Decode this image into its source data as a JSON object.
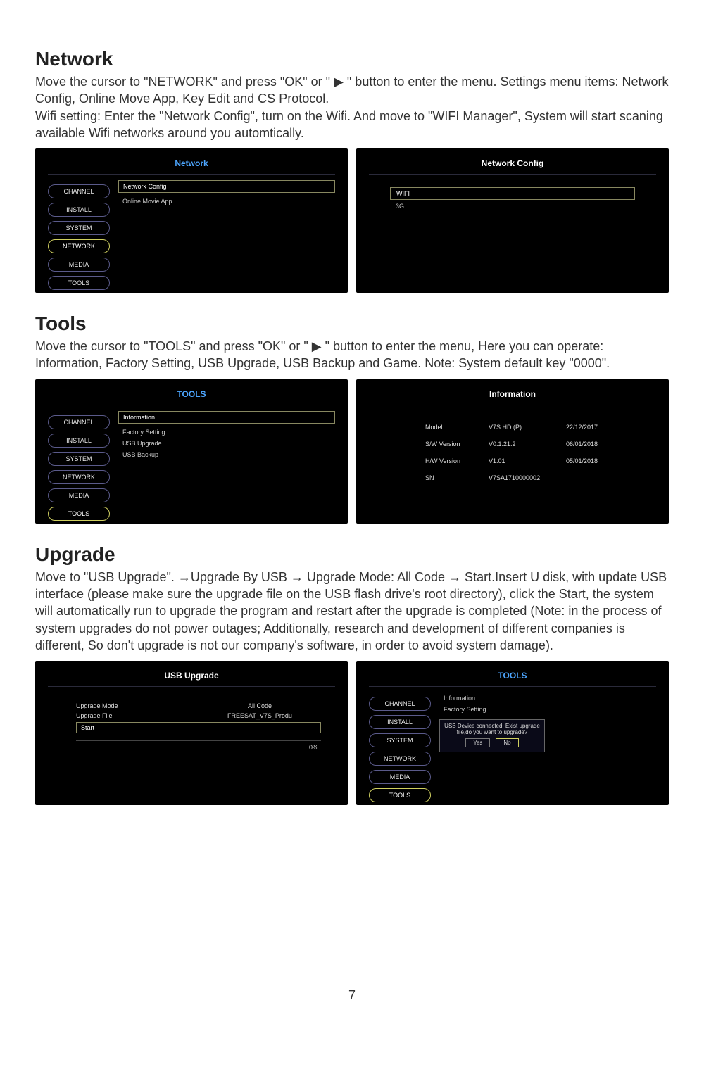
{
  "page_number": "7",
  "sections": {
    "network": {
      "heading": "Network",
      "body": "Move the cursor to \"NETWORK\" and press \"OK\" or \" ▶ \" button to enter the menu. Settings menu items: Network Config, Online Move App, Key Edit and CS Protocol.\nWifi setting: Enter the \"Network Config\", turn on the Wifi. And move to \"WIFI Manager\", System will start scaning available Wifi networks around you automtically."
    },
    "tools": {
      "heading": "Tools",
      "body": "Move the cursor to \"TOOLS\" and press \"OK\" or \" ▶ \" button to enter the menu, Here you can operate: Information, Factory Setting,  USB Upgrade, USB Backup and Game. Note: System default key \"0000\"."
    },
    "upgrade": {
      "heading": "Upgrade",
      "body": "Move to \"USB Upgrade\". →Upgrade By USB → Upgrade Mode: All Code → Start.Insert U disk, with update USB interface (please make sure the upgrade file on the USB flash drive's root directory), click the Start, the system will automatically run to upgrade the program and restart after the upgrade is completed (Note: in the process of system upgrades do not power outages; Additionally, research and development of different companies is different, So don't upgrade is not our company's software, in order to avoid system damage)."
    }
  },
  "sidebar_items": [
    "CHANNEL",
    "INSTALL",
    "SYSTEM",
    "NETWORK",
    "MEDIA",
    "TOOLS"
  ],
  "shot_network_menu": {
    "title": "Network",
    "selected_sidebar": "NETWORK",
    "options": [
      "Network Config",
      "Online Movie App"
    ]
  },
  "shot_network_config": {
    "title": "Network Config",
    "items": [
      "WIFI",
      "3G"
    ]
  },
  "shot_tools_menu": {
    "title": "TOOLS",
    "selected_sidebar": "TOOLS",
    "options": [
      "Information",
      "Factory Setting",
      "USB Upgrade",
      "USB Backup"
    ]
  },
  "shot_information": {
    "title": "Information",
    "rows": [
      {
        "label": "Model",
        "val": "V7S HD (P)",
        "date": "22/12/2017"
      },
      {
        "label": "S/W Version",
        "val": "V0.1.21.2",
        "date": "06/01/2018"
      },
      {
        "label": "H/W Version",
        "val": "V1.01",
        "date": "05/01/2018"
      },
      {
        "label": "SN",
        "val": "V7SA1710000002",
        "date": ""
      }
    ]
  },
  "shot_usb_upgrade": {
    "title": "USB Upgrade",
    "mode_label": "Upgrade Mode",
    "mode_val": "All Code",
    "file_label": "Upgrade File",
    "file_val": "FREESAT_V7S_Produ",
    "start": "Start",
    "percent": "0%"
  },
  "shot_tools_popup": {
    "title": "TOOLS",
    "selected_sidebar": "TOOLS",
    "options": [
      "Information",
      "Factory Setting"
    ],
    "popup_text": "USB Device connected. Exist upgrade file,do you want to upgrade?",
    "yes": "Yes",
    "no": "No"
  },
  "colors": {
    "bg_page": "#ffffff",
    "bg_shot": "#000000",
    "accent": "#d0d060",
    "title_blue": "#4da6ff"
  }
}
